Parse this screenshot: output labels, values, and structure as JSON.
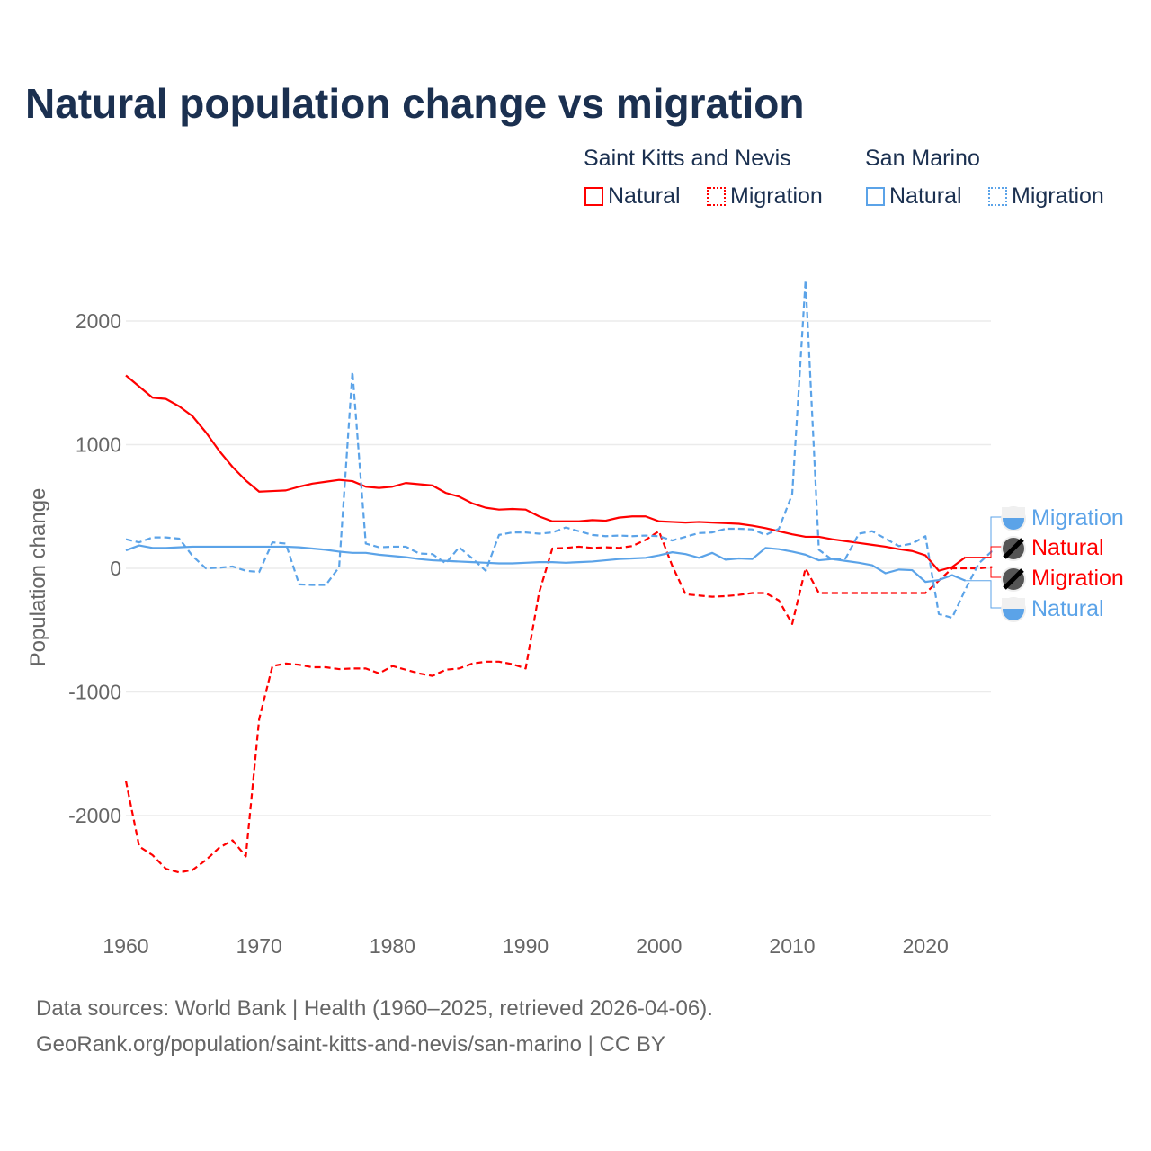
{
  "title": "Natural population change vs migration",
  "legend": {
    "groups": [
      "Saint Kitts and Nevis",
      "San Marino"
    ],
    "items": [
      {
        "label": "Natural",
        "color": "#ff0000",
        "style": "solid"
      },
      {
        "label": "Migration",
        "color": "#ff0000",
        "style": "dotted"
      },
      {
        "label": "Natural",
        "color": "#5ba3e8",
        "style": "solid"
      },
      {
        "label": "Migration",
        "color": "#5ba3e8",
        "style": "dotted"
      }
    ]
  },
  "footer": {
    "line1": "Data sources: World Bank | Health (1960–2025, retrieved 2026-04-06).",
    "line2": "GeoRank.org/population/saint-kitts-and-nevis/san-marino | CC BY"
  },
  "chart_data": {
    "type": "line",
    "title": "Natural population change vs migration",
    "xlabel": "",
    "ylabel": "Population change",
    "xlim": [
      1960,
      2025
    ],
    "ylim": [
      -2600,
      2400
    ],
    "xticks": [
      1960,
      1970,
      1980,
      1990,
      2000,
      2010,
      2020
    ],
    "yticks": [
      -2000,
      -1000,
      0,
      1000,
      2000
    ],
    "grid": true,
    "start_year": 1960,
    "series": [
      {
        "name": "Saint Kitts and Nevis Natural",
        "end_label": "Natural",
        "color": "#ff0000",
        "dash": false,
        "values": [
          1560,
          1470,
          1380,
          1370,
          1310,
          1230,
          1100,
          950,
          820,
          710,
          620,
          625,
          630,
          660,
          685,
          700,
          715,
          705,
          660,
          650,
          660,
          690,
          680,
          670,
          610,
          580,
          525,
          490,
          475,
          480,
          475,
          420,
          380,
          380,
          380,
          390,
          385,
          410,
          420,
          420,
          380,
          375,
          370,
          375,
          370,
          365,
          360,
          345,
          325,
          300,
          275,
          255,
          255,
          235,
          220,
          205,
          190,
          175,
          155,
          140,
          105,
          -20,
          10,
          90
        ]
      },
      {
        "name": "Saint Kitts and Nevis Migration",
        "end_label": "Migration",
        "color": "#ff0000",
        "dash": true,
        "values": [
          -1720,
          -2250,
          -2320,
          -2430,
          -2460,
          -2440,
          -2360,
          -2260,
          -2200,
          -2330,
          -1220,
          -790,
          -770,
          -780,
          -800,
          -800,
          -815,
          -810,
          -810,
          -850,
          -790,
          -820,
          -850,
          -870,
          -820,
          -810,
          -770,
          -755,
          -755,
          -775,
          -810,
          -200,
          160,
          165,
          175,
          165,
          170,
          165,
          180,
          230,
          300,
          20,
          -210,
          -220,
          -230,
          -225,
          -215,
          -200,
          -200,
          -260,
          -450,
          0,
          -200,
          -200,
          -200,
          -200,
          -200,
          -200,
          -200,
          -200,
          -200,
          -100,
          0,
          0,
          0,
          10
        ]
      },
      {
        "name": "San Marino Natural",
        "end_label": "Natural",
        "color": "#5ba3e8",
        "dash": false,
        "values": [
          145,
          185,
          165,
          165,
          170,
          175,
          175,
          175,
          175,
          175,
          175,
          175,
          175,
          170,
          160,
          150,
          135,
          125,
          125,
          110,
          100,
          90,
          75,
          65,
          60,
          55,
          50,
          45,
          40,
          40,
          45,
          50,
          50,
          45,
          50,
          55,
          65,
          75,
          80,
          85,
          105,
          130,
          115,
          85,
          125,
          70,
          80,
          75,
          165,
          155,
          135,
          110,
          65,
          75,
          60,
          45,
          25,
          -40,
          -10,
          -15,
          -110,
          -95,
          -55,
          -100
        ]
      },
      {
        "name": "San Marino Migration",
        "end_label": "Migration",
        "color": "#5ba3e8",
        "dash": true,
        "values": [
          235,
          210,
          250,
          250,
          240,
          100,
          0,
          5,
          15,
          -20,
          -30,
          210,
          200,
          -130,
          -135,
          -135,
          10,
          1590,
          200,
          170,
          175,
          175,
          120,
          115,
          40,
          170,
          80,
          -20,
          270,
          290,
          290,
          280,
          290,
          330,
          300,
          270,
          260,
          265,
          260,
          265,
          260,
          225,
          255,
          285,
          290,
          320,
          320,
          315,
          270,
          320,
          600,
          2330,
          150,
          70,
          80,
          280,
          300,
          240,
          180,
          200,
          260,
          -370,
          -400,
          -170,
          40,
          140
        ]
      }
    ]
  }
}
